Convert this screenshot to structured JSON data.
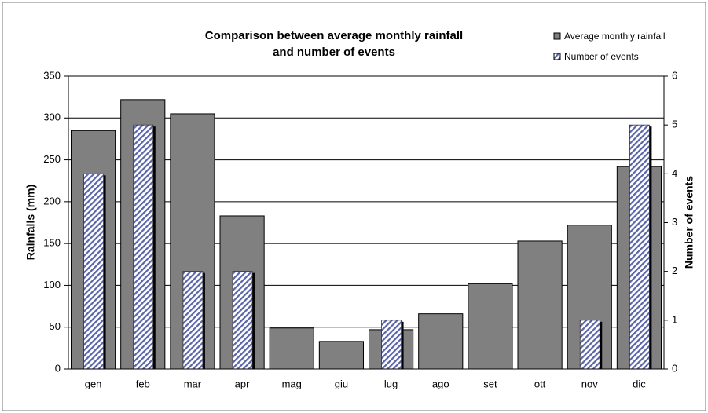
{
  "chart_data": {
    "type": "bar",
    "title": [
      "Comparison between average monthly rainfall",
      "and number of events"
    ],
    "y_label": "Rainfalls (mm)",
    "y2_label": "Number of events",
    "categories": [
      "gen",
      "feb",
      "mar",
      "apr",
      "mag",
      "giu",
      "lug",
      "ago",
      "set",
      "ott",
      "nov",
      "dic"
    ],
    "series": [
      {
        "name": "Average monthly rainfall",
        "color": "#808080",
        "values": [
          285,
          322,
          305,
          183,
          49,
          33,
          47,
          66,
          102,
          153,
          172,
          242
        ]
      },
      {
        "name": "Number of events",
        "color": "#9aa3c8",
        "axis": "y2",
        "values": [
          4,
          5,
          2,
          2,
          0,
          0,
          1,
          0,
          0,
          0,
          1,
          5
        ]
      }
    ],
    "ylim": [
      0,
      350
    ],
    "yticks": [
      0,
      50,
      100,
      150,
      200,
      250,
      300,
      350
    ],
    "y2lim": [
      0,
      6
    ],
    "y2ticks": [
      0,
      1,
      2,
      3,
      4,
      5,
      6
    ],
    "grid": true,
    "legend": "top-right"
  }
}
